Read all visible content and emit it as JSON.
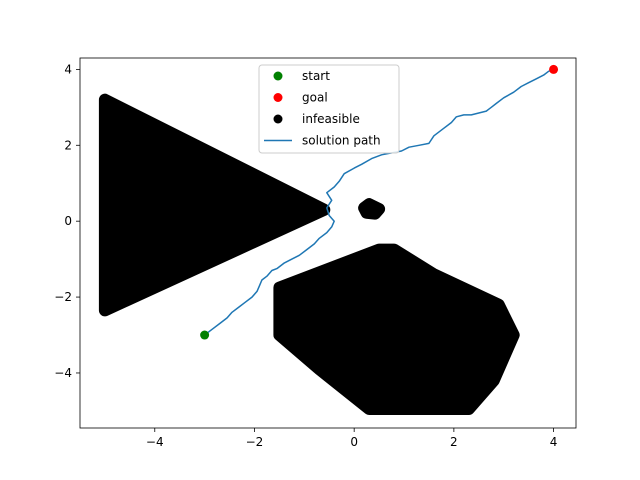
{
  "chart_data": {
    "type": "scatter",
    "title": "",
    "xlabel": "",
    "ylabel": "",
    "xlim": [
      -5.5,
      4.45
    ],
    "ylim": [
      -5.45,
      4.3
    ],
    "xticks": [
      -4,
      -2,
      0,
      2,
      4
    ],
    "yticks": [
      -4,
      -2,
      0,
      2,
      4
    ],
    "xtick_labels": [
      "−4",
      "−2",
      "0",
      "2",
      "4"
    ],
    "ytick_labels": [
      "−4",
      "−2",
      "0",
      "2",
      "4"
    ],
    "grid": false,
    "legend_position": "upper center",
    "start": {
      "label": "start",
      "color": "#008000",
      "point": [
        -3.0,
        -3.0
      ]
    },
    "goal": {
      "label": "goal",
      "color": "#ff0000",
      "point": [
        4.0,
        4.0
      ]
    },
    "infeasible": {
      "label": "infeasible",
      "color": "#000000",
      "regions": [
        {
          "shape": "triangle",
          "vertices": [
            [
              -5.0,
              3.2
            ],
            [
              -5.0,
              -2.35
            ],
            [
              -0.6,
              0.3
            ]
          ]
        },
        {
          "shape": "polygon",
          "vertices": [
            [
              0.5,
              -0.75
            ],
            [
              -1.5,
              -1.75
            ],
            [
              -1.5,
              -3.0
            ],
            [
              -0.7,
              -3.9
            ],
            [
              0.3,
              -4.95
            ],
            [
              1.0,
              -4.95
            ],
            [
              2.3,
              -4.95
            ],
            [
              2.8,
              -4.2
            ],
            [
              3.2,
              -3.0
            ],
            [
              2.9,
              -2.2
            ],
            [
              1.6,
              -1.4
            ],
            [
              0.8,
              -0.75
            ]
          ]
        },
        {
          "shape": "blob",
          "vertices": [
            [
              0.3,
              0.45
            ],
            [
              0.5,
              0.32
            ],
            [
              0.42,
              0.2
            ],
            [
              0.25,
              0.22
            ],
            [
              0.2,
              0.35
            ]
          ]
        }
      ]
    },
    "series": [
      {
        "name": "solution path",
        "color": "#1f77b4",
        "x": [
          -3.0,
          -2.85,
          -2.7,
          -2.55,
          -2.45,
          -2.3,
          -2.2,
          -2.05,
          -1.95,
          -1.9,
          -1.85,
          -1.75,
          -1.65,
          -1.55,
          -1.4,
          -1.25,
          -1.1,
          -0.95,
          -0.8,
          -0.7,
          -0.55,
          -0.45,
          -0.4,
          -0.5,
          -0.55,
          -0.45,
          -0.55,
          -0.4,
          -0.3,
          -0.2,
          0.0,
          0.15,
          0.35,
          0.55,
          0.75,
          0.95,
          1.1,
          1.3,
          1.5,
          1.6,
          1.8,
          1.95,
          2.05,
          2.2,
          2.35,
          2.5,
          2.65,
          2.7,
          2.75,
          2.85,
          3.0,
          3.2,
          3.35,
          3.5,
          3.65,
          3.8,
          3.9,
          4.0
        ],
        "y": [
          -3.0,
          -2.85,
          -2.7,
          -2.55,
          -2.4,
          -2.25,
          -2.15,
          -2.0,
          -1.85,
          -1.7,
          -1.55,
          -1.45,
          -1.3,
          -1.25,
          -1.1,
          -1.0,
          -0.9,
          -0.75,
          -0.6,
          -0.45,
          -0.3,
          -0.15,
          0.0,
          0.15,
          0.35,
          0.55,
          0.75,
          0.9,
          1.05,
          1.25,
          1.4,
          1.5,
          1.65,
          1.75,
          1.8,
          1.85,
          1.95,
          2.0,
          2.05,
          2.25,
          2.45,
          2.6,
          2.75,
          2.8,
          2.8,
          2.85,
          2.9,
          2.95,
          3.0,
          3.1,
          3.25,
          3.4,
          3.55,
          3.65,
          3.75,
          3.85,
          3.95,
          4.0
        ]
      }
    ],
    "legend": [
      "start",
      "goal",
      "infeasible",
      "solution path"
    ]
  }
}
